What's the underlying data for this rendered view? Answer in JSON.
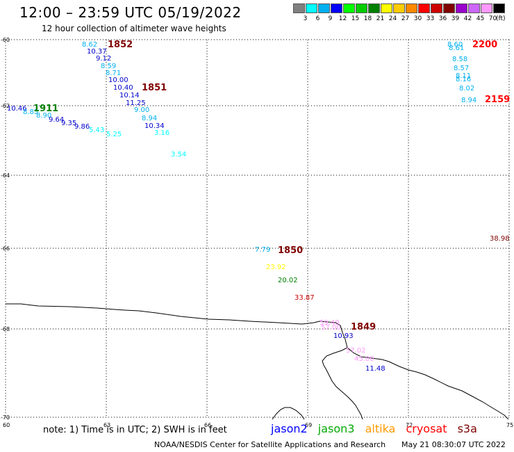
{
  "title": "12:00 – 23:59 UTC 05/19/2022",
  "subtitle": "12 hour collection of altimeter wave heights",
  "color_scale": {
    "unit": "(ft)",
    "items": [
      {
        "label": "3",
        "color": "#808080"
      },
      {
        "label": "6",
        "color": "#00ffff"
      },
      {
        "label": "9",
        "color": "#00b0f0"
      },
      {
        "label": "12",
        "color": "#0000ff"
      },
      {
        "label": "15",
        "color": "#00ff00"
      },
      {
        "label": "18",
        "color": "#00cc00"
      },
      {
        "label": "21",
        "color": "#008000"
      },
      {
        "label": "24",
        "color": "#ffff00"
      },
      {
        "label": "27",
        "color": "#ffcc00"
      },
      {
        "label": "30",
        "color": "#ff8800"
      },
      {
        "label": "33",
        "color": "#ff0000"
      },
      {
        "label": "36",
        "color": "#cc0000"
      },
      {
        "label": "39",
        "color": "#800000"
      },
      {
        "label": "42",
        "color": "#9900cc"
      },
      {
        "label": "45",
        "color": "#cc66ff"
      },
      {
        "label": "70",
        "color": "#ff99ff"
      },
      {
        "label": "",
        "color": "#000000"
      }
    ]
  },
  "axes": {
    "lat_labels": [
      "-60",
      "-62",
      "-64",
      "-66",
      "-68",
      "-70"
    ],
    "lon_labels": [
      "60",
      "63",
      "66",
      "69",
      "72",
      "75"
    ]
  },
  "wave_points": [
    {
      "text": "8.62",
      "color": "#00b0f0"
    },
    {
      "text": "10.37",
      "color": "#0000cc"
    },
    {
      "text": "9.12",
      "color": "#0000cc"
    },
    {
      "text": "8.59",
      "color": "#00b0f0"
    },
    {
      "text": "8.71",
      "color": "#00b0f0"
    },
    {
      "text": "10.00",
      "color": "#0000cc"
    },
    {
      "text": "10.40",
      "color": "#0000cc"
    },
    {
      "text": "10.14",
      "color": "#0000cc"
    },
    {
      "text": "11.25",
      "color": "#0000cc"
    },
    {
      "text": "9.00",
      "color": "#00b0f0"
    },
    {
      "text": "8.94",
      "color": "#00b0f0"
    },
    {
      "text": "10.34",
      "color": "#0000cc"
    },
    {
      "text": "3.16",
      "color": "#00ffff"
    },
    {
      "text": "3.54",
      "color": "#00ffff"
    },
    {
      "text": "10.46",
      "color": "#0000cc"
    },
    {
      "text": "8.85",
      "color": "#00b0f0"
    },
    {
      "text": "8.90",
      "color": "#00b0f0"
    },
    {
      "text": "9.64",
      "color": "#0000cc"
    },
    {
      "text": "9.35",
      "color": "#0000cc"
    },
    {
      "text": "9.86",
      "color": "#0000cc"
    },
    {
      "text": "5.43",
      "color": "#00ffff"
    },
    {
      "text": "5.25",
      "color": "#00ffff"
    },
    {
      "text": "8.60",
      "color": "#00b0f0"
    },
    {
      "text": "8.61",
      "color": "#00b0f0"
    },
    {
      "text": "8.58",
      "color": "#00b0f0"
    },
    {
      "text": "8.57",
      "color": "#00b0f0"
    },
    {
      "text": "8.11",
      "color": "#00b0f0"
    },
    {
      "text": "8.16",
      "color": "#00b0f0"
    },
    {
      "text": "8.02",
      "color": "#00b0f0"
    },
    {
      "text": "8.94",
      "color": "#00b0f0"
    },
    {
      "text": "38.98",
      "color": "#800000"
    },
    {
      "text": "7.79",
      "color": "#00b0f0"
    },
    {
      "text": "23.92",
      "color": "#ffff00"
    },
    {
      "text": "20.02",
      "color": "#008000"
    },
    {
      "text": "33.87",
      "color": "#cc0000"
    },
    {
      "text": "59.49",
      "color": "#ff99ff"
    },
    {
      "text": "57.00",
      "color": "#ff99ff"
    },
    {
      "text": "10.93",
      "color": "#0000cc"
    },
    {
      "text": "57.02",
      "color": "#ff99ff"
    },
    {
      "text": "45.00",
      "color": "#ff99ff"
    },
    {
      "text": "11.48",
      "color": "#0000cc"
    }
  ],
  "time_labels": [
    {
      "text": "1852",
      "color": "#800000"
    },
    {
      "text": "1851",
      "color": "#800000"
    },
    {
      "text": "1911",
      "color": "#008000"
    },
    {
      "text": "2200",
      "color": "#ff0000"
    },
    {
      "text": "2159",
      "color": "#ff0000"
    },
    {
      "text": "1850",
      "color": "#800000"
    },
    {
      "text": "1849",
      "color": "#800000"
    }
  ],
  "note": "note:  1) Time is in UTC;  2) SWH is in feet",
  "satellites": [
    {
      "name": "jason2",
      "color": "#0000ff"
    },
    {
      "name": "jason3",
      "color": "#00aa00"
    },
    {
      "name": "altika",
      "color": "#ff9900"
    },
    {
      "name": "cryosat",
      "color": "#ff0000"
    },
    {
      "name": "s3a",
      "color": "#800000"
    }
  ],
  "footer": "NOAA/NESDIS Center for Satellite Applications and Research",
  "footer_time": "May 21 08:30:07 UTC 2022"
}
